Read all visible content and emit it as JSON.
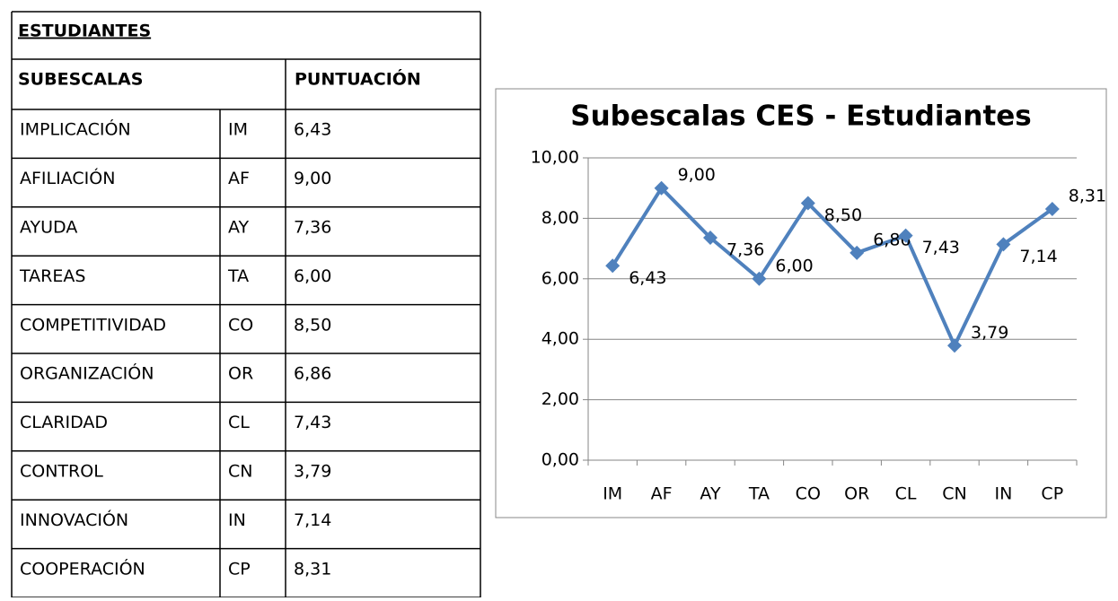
{
  "table": {
    "title": "ESTUDIANTES",
    "headers": [
      "SUBESCALAS",
      "PUNTUACIÓN"
    ],
    "rows": [
      [
        "IMPLICACIÓN",
        "IM",
        "6,43"
      ],
      [
        "AFILIACIÓN",
        "AF",
        "9,00"
      ],
      [
        "AYUDA",
        "AY",
        "7,36"
      ],
      [
        "TAREAS",
        "TA",
        "6,00"
      ],
      [
        "COMPETITIVIDAD",
        "CO",
        "8,50"
      ],
      [
        "ORGANIZACIÓN",
        "OR",
        "6,86"
      ],
      [
        "CLARIDAD",
        "CL",
        "7,43"
      ],
      [
        "CONTROL",
        "CN",
        "3,79"
      ],
      [
        "INNOVACIÓN",
        "IN",
        "7,14"
      ],
      [
        "COOPERACIÓN",
        "CP",
        "8,31"
      ]
    ]
  },
  "chart_data": {
    "type": "line",
    "title": "Subescalas CES - Estudiantes",
    "categories": [
      "IM",
      "AF",
      "AY",
      "TA",
      "CO",
      "OR",
      "CL",
      "CN",
      "IN",
      "CP"
    ],
    "values": [
      6.43,
      9.0,
      7.36,
      6.0,
      8.5,
      6.86,
      7.43,
      3.79,
      7.14,
      8.31
    ],
    "value_labels": [
      "6,43",
      "9,00",
      "7,36",
      "6,00",
      "8,50",
      "6,86",
      "7,43",
      "3,79",
      "7,14",
      "8,31"
    ],
    "color": "#4f81bd",
    "ylim": [
      0,
      10
    ],
    "yticks": [
      {
        "value": 0,
        "label": "0,00"
      },
      {
        "value": 2,
        "label": "2,00"
      },
      {
        "value": 4,
        "label": "4,00"
      },
      {
        "value": 6,
        "label": "6,00"
      },
      {
        "value": 8,
        "label": "8,00"
      },
      {
        "value": 10,
        "label": "10,00"
      }
    ],
    "grid": true
  }
}
